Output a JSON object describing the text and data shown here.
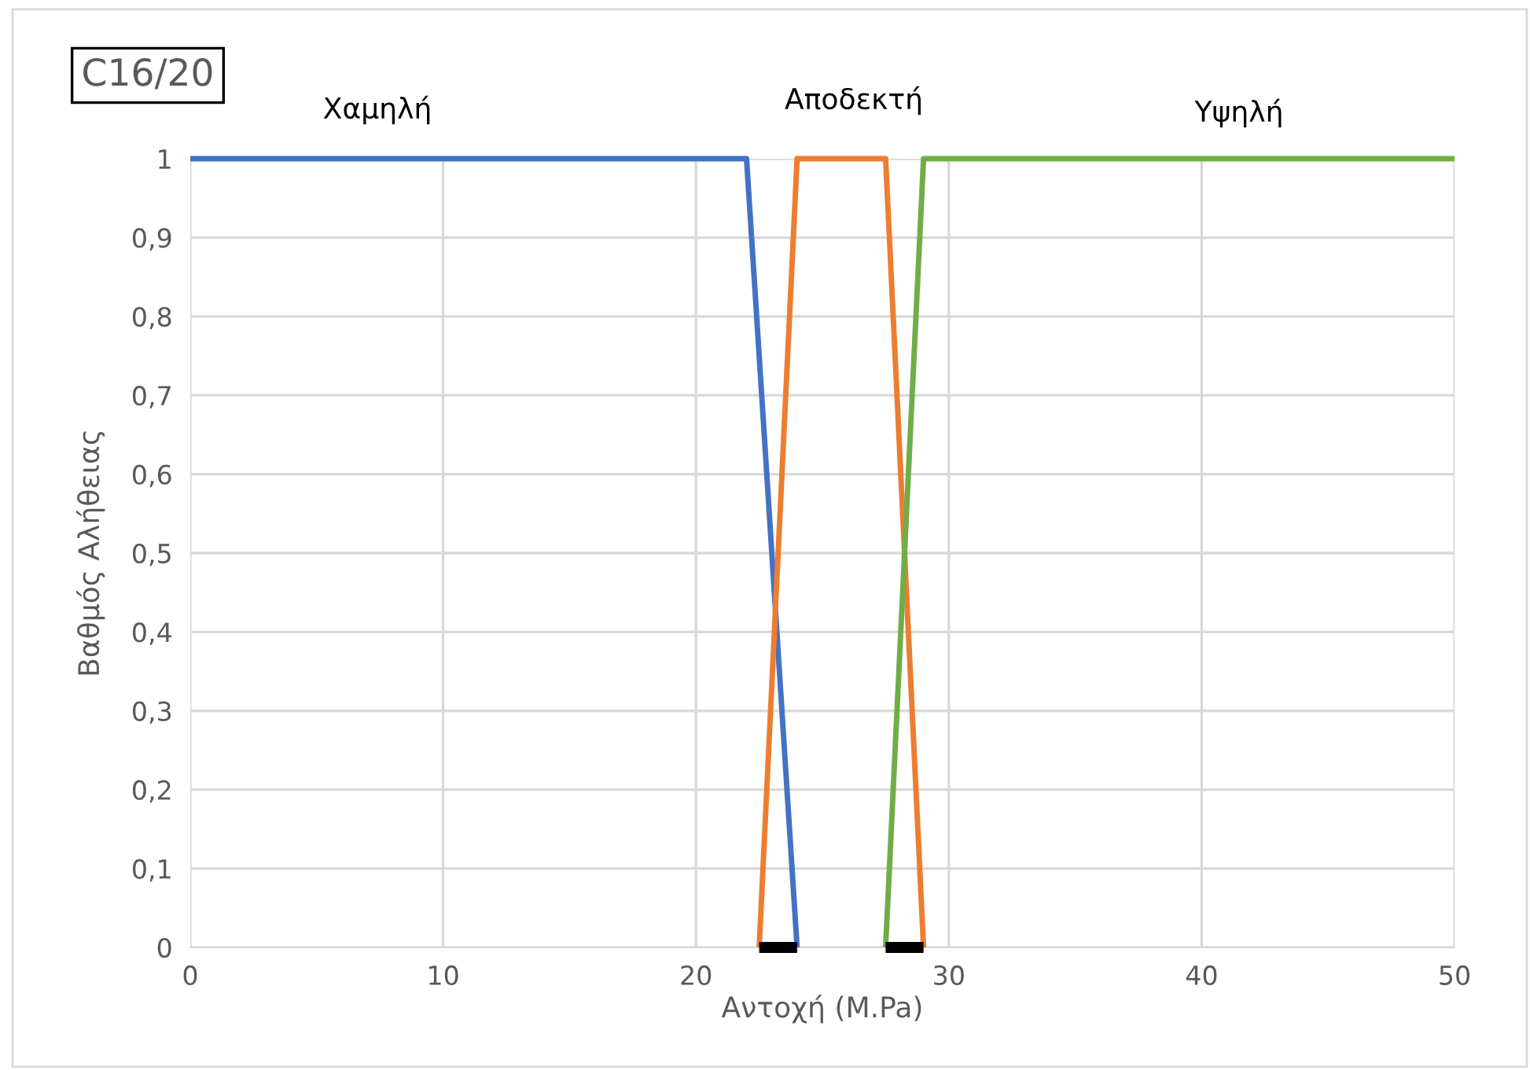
{
  "chart_data": {
    "type": "line",
    "title": "C16/20",
    "xlabel": "Αντοχή (M.Pa)",
    "ylabel": "Βαθμός Αλήθειας",
    "annotations": [
      "Χαμηλή",
      "Αποδεκτή",
      "Υψηλή"
    ],
    "series": [
      {
        "color": "#4472c4",
        "x": [
          0,
          22,
          24
        ],
        "values": [
          1,
          1,
          0
        ]
      },
      {
        "color": "#ed7d31",
        "x": [
          22.5,
          24,
          27.5,
          29
        ],
        "values": [
          0,
          1,
          1,
          0
        ]
      },
      {
        "color": "#70ad47",
        "x": [
          27.5,
          29,
          50
        ],
        "values": [
          0,
          1,
          1
        ]
      },
      {
        "color": "#000000",
        "x": [
          22.5,
          24
        ],
        "values": [
          0,
          0
        ]
      },
      {
        "color": "#000000",
        "x": [
          27.5,
          29
        ],
        "values": [
          0,
          0
        ]
      }
    ],
    "xlim": [
      0,
      50
    ],
    "xticks": [
      0,
      10,
      20,
      30,
      40,
      50
    ],
    "ylim": [
      0,
      1
    ],
    "yticks": [
      0,
      {
        "value": 0.1,
        "label": "0,1"
      },
      {
        "value": 0.2,
        "label": "0,2"
      },
      {
        "value": 0.3,
        "label": "0,3"
      },
      {
        "value": 0.4,
        "label": "0,4"
      },
      {
        "value": 0.5,
        "label": "0,5"
      },
      {
        "value": 0.6,
        "label": "0,6"
      },
      {
        "value": 0.7,
        "label": "0,7"
      },
      {
        "value": 0.8,
        "label": "0,8"
      },
      {
        "value": 0.9,
        "label": "0,9"
      },
      1
    ],
    "grid": true,
    "legend": false,
    "marker": "none",
    "line_style": "solid"
  }
}
